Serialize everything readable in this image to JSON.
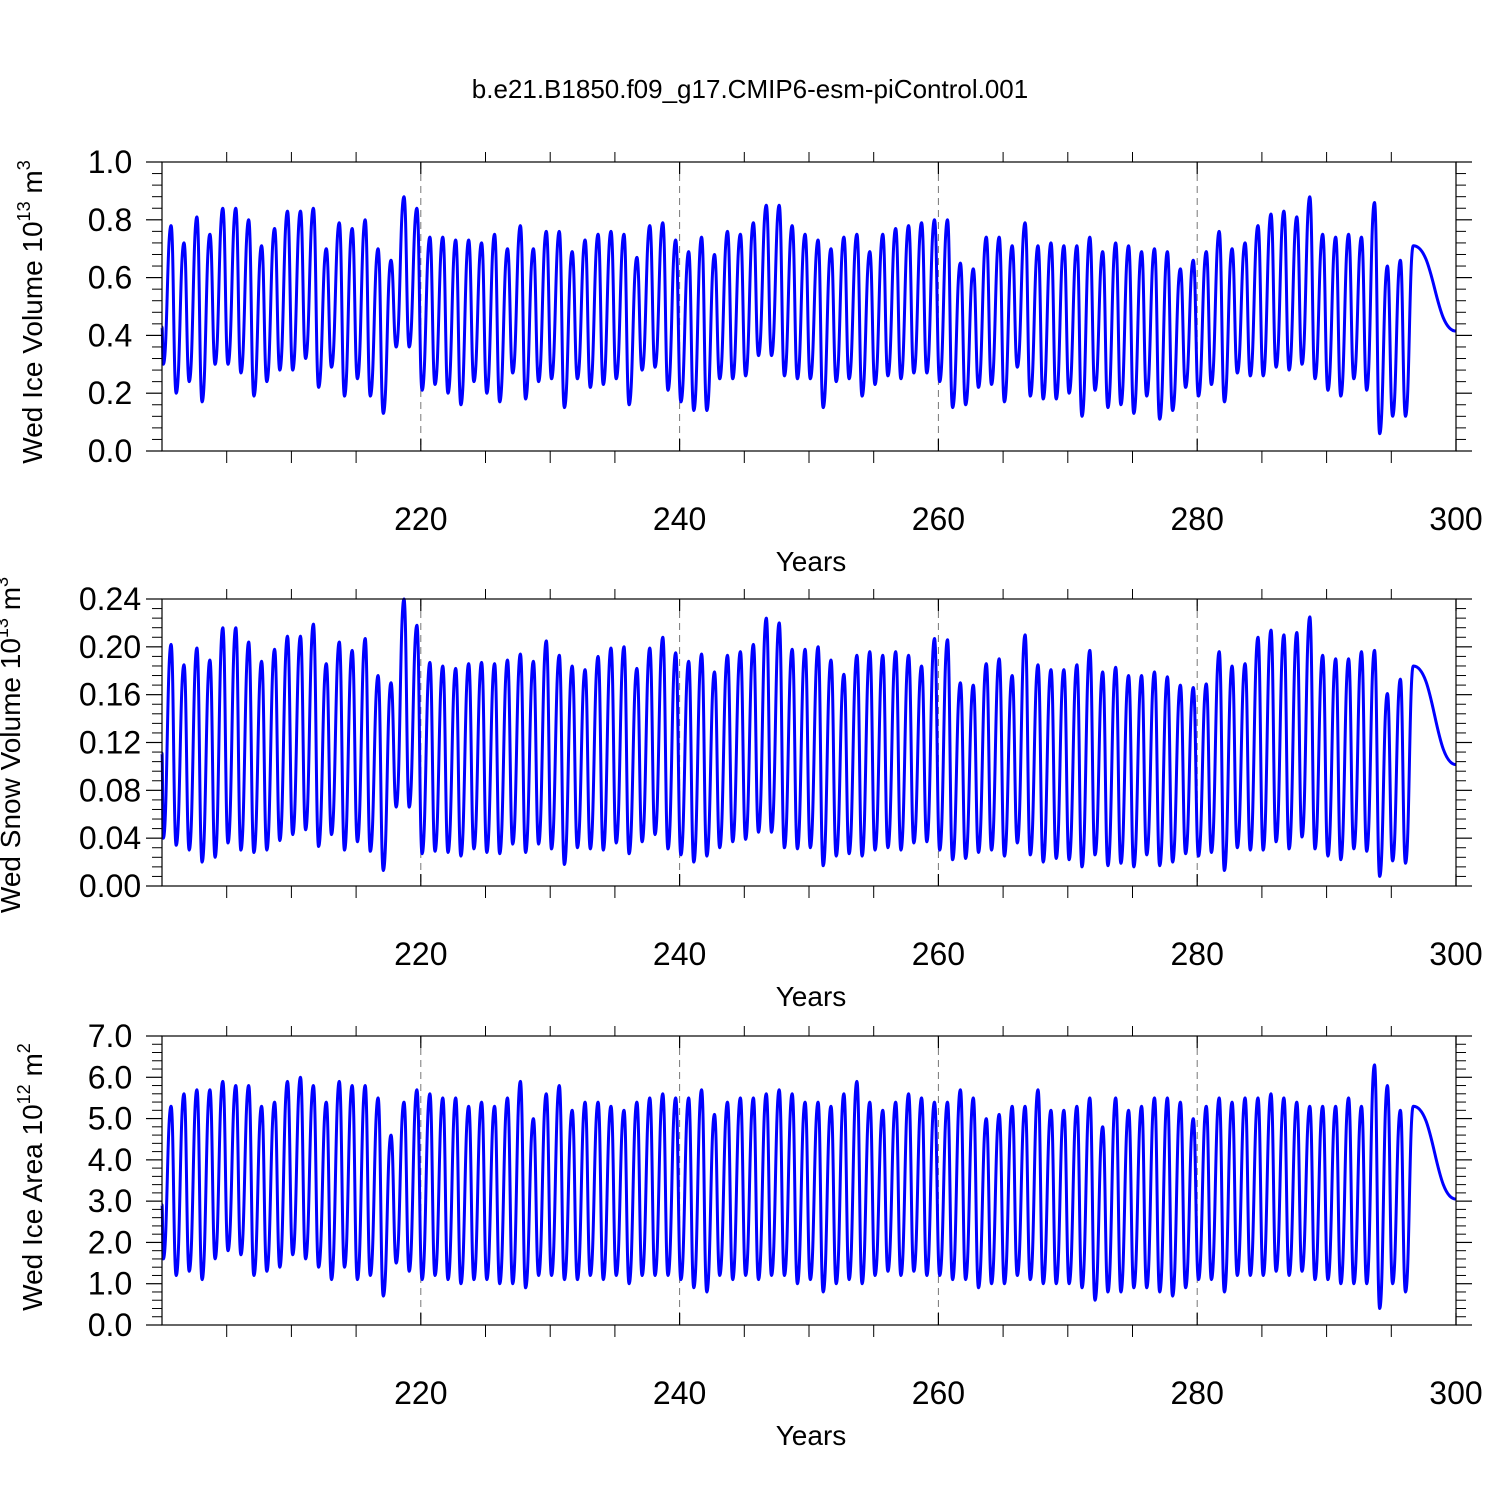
{
  "figure": {
    "title": "b.e21.B1850.f09_g17.CMIP6-esm-piControl.001"
  },
  "chart_data": [
    {
      "type": "line",
      "xlabel": "Years",
      "ylabel": {
        "pre": "Wed Ice Volume 10",
        "exp": "13",
        "mid": " m",
        "unit_exp": "3"
      },
      "xlim": [
        200,
        300
      ],
      "ylim": [
        0.0,
        1.0
      ],
      "xticks": [
        220,
        240,
        260,
        280,
        300
      ],
      "xtick_labels": [
        "220",
        "240",
        "260",
        "280",
        "300"
      ],
      "yticks": [
        0.0,
        0.2,
        0.4,
        0.6,
        0.8,
        1.0
      ],
      "ytick_labels": [
        "0.0",
        "0.2",
        "0.4",
        "0.6",
        "0.8",
        "1.0"
      ],
      "grid": "dashed vertical at major x ticks",
      "color": "#0000ff",
      "series": [
        {
          "x_start": 200.0,
          "x_step": 1,
          "maxima": [
            0.78,
            0.72,
            0.81,
            0.75,
            0.84,
            0.84,
            0.8,
            0.71,
            0.77,
            0.83,
            0.83,
            0.84,
            0.7,
            0.79,
            0.77,
            0.8,
            0.7,
            0.66,
            0.88,
            0.84,
            0.74,
            0.74,
            0.73,
            0.73,
            0.72,
            0.75,
            0.7,
            0.78,
            0.7,
            0.76,
            0.76,
            0.69,
            0.73,
            0.75,
            0.76,
            0.75,
            0.67,
            0.78,
            0.79,
            0.73,
            0.69,
            0.74,
            0.68,
            0.76,
            0.75,
            0.79,
            0.85,
            0.85,
            0.78,
            0.75,
            0.73,
            0.7,
            0.74,
            0.75,
            0.69,
            0.75,
            0.77,
            0.78,
            0.79,
            0.8,
            0.8,
            0.65,
            0.63,
            0.74,
            0.74,
            0.71,
            0.79,
            0.71,
            0.72,
            0.71,
            0.71,
            0.74,
            0.69,
            0.72,
            0.71,
            0.69,
            0.7,
            0.69,
            0.63,
            0.66,
            0.69,
            0.76,
            0.7,
            0.72,
            0.78,
            0.82,
            0.83,
            0.81,
            0.88,
            0.75,
            0.74,
            0.75,
            0.74,
            0.86,
            0.64,
            0.66,
            0.71
          ],
          "minima": [
            0.3,
            0.2,
            0.24,
            0.17,
            0.3,
            0.3,
            0.27,
            0.19,
            0.24,
            0.28,
            0.28,
            0.32,
            0.22,
            0.29,
            0.19,
            0.25,
            0.19,
            0.13,
            0.36,
            0.36,
            0.21,
            0.23,
            0.2,
            0.16,
            0.24,
            0.2,
            0.17,
            0.27,
            0.18,
            0.24,
            0.25,
            0.15,
            0.25,
            0.22,
            0.23,
            0.25,
            0.16,
            0.28,
            0.29,
            0.21,
            0.17,
            0.14,
            0.14,
            0.25,
            0.25,
            0.26,
            0.33,
            0.33,
            0.26,
            0.25,
            0.25,
            0.15,
            0.24,
            0.25,
            0.19,
            0.23,
            0.26,
            0.25,
            0.27,
            0.27,
            0.24,
            0.15,
            0.16,
            0.22,
            0.23,
            0.17,
            0.29,
            0.19,
            0.18,
            0.18,
            0.2,
            0.12,
            0.21,
            0.15,
            0.16,
            0.13,
            0.19,
            0.11,
            0.14,
            0.22,
            0.19,
            0.23,
            0.17,
            0.27,
            0.26,
            0.26,
            0.29,
            0.28,
            0.3,
            0.25,
            0.21,
            0.19,
            0.25,
            0.21,
            0.06,
            0.12,
            0.12
          ]
        }
      ]
    },
    {
      "type": "line",
      "xlabel": "Years",
      "ylabel": {
        "pre": "Wed Snow Volume 10",
        "exp": "13",
        "mid": " m",
        "unit_exp": "3"
      },
      "xlim": [
        200,
        300
      ],
      "ylim": [
        0.0,
        0.24
      ],
      "xticks": [
        220,
        240,
        260,
        280,
        300
      ],
      "xtick_labels": [
        "220",
        "240",
        "260",
        "280",
        "300"
      ],
      "yticks": [
        0.0,
        0.04,
        0.08,
        0.12,
        0.16,
        0.2,
        0.24
      ],
      "ytick_labels": [
        "0.00",
        "0.04",
        "0.08",
        "0.12",
        "0.16",
        "0.20",
        "0.24"
      ],
      "grid": "dashed vertical at major x ticks",
      "color": "#0000ff",
      "series": [
        {
          "x_start": 200.0,
          "x_step": 1,
          "maxima": [
            0.202,
            0.185,
            0.199,
            0.189,
            0.216,
            0.216,
            0.204,
            0.188,
            0.198,
            0.209,
            0.209,
            0.219,
            0.186,
            0.204,
            0.197,
            0.207,
            0.176,
            0.17,
            0.24,
            0.218,
            0.187,
            0.184,
            0.182,
            0.186,
            0.187,
            0.186,
            0.189,
            0.194,
            0.188,
            0.205,
            0.193,
            0.184,
            0.181,
            0.192,
            0.199,
            0.2,
            0.182,
            0.199,
            0.208,
            0.195,
            0.188,
            0.194,
            0.179,
            0.193,
            0.196,
            0.202,
            0.224,
            0.22,
            0.198,
            0.198,
            0.2,
            0.189,
            0.177,
            0.193,
            0.196,
            0.193,
            0.196,
            0.193,
            0.184,
            0.207,
            0.206,
            0.17,
            0.168,
            0.186,
            0.19,
            0.176,
            0.21,
            0.185,
            0.181,
            0.181,
            0.185,
            0.197,
            0.179,
            0.183,
            0.176,
            0.176,
            0.179,
            0.175,
            0.168,
            0.166,
            0.169,
            0.196,
            0.184,
            0.186,
            0.208,
            0.214,
            0.21,
            0.212,
            0.225,
            0.193,
            0.19,
            0.19,
            0.196,
            0.197,
            0.161,
            0.173,
            0.184
          ],
          "minima": [
            0.04,
            0.034,
            0.03,
            0.02,
            0.024,
            0.036,
            0.03,
            0.028,
            0.03,
            0.038,
            0.043,
            0.047,
            0.033,
            0.043,
            0.03,
            0.037,
            0.029,
            0.013,
            0.066,
            0.066,
            0.027,
            0.029,
            0.028,
            0.025,
            0.031,
            0.028,
            0.027,
            0.035,
            0.028,
            0.035,
            0.031,
            0.018,
            0.032,
            0.031,
            0.03,
            0.036,
            0.027,
            0.037,
            0.043,
            0.031,
            0.026,
            0.02,
            0.025,
            0.032,
            0.037,
            0.039,
            0.045,
            0.045,
            0.032,
            0.031,
            0.032,
            0.017,
            0.025,
            0.027,
            0.025,
            0.03,
            0.032,
            0.03,
            0.036,
            0.037,
            0.03,
            0.022,
            0.023,
            0.028,
            0.03,
            0.025,
            0.036,
            0.026,
            0.02,
            0.023,
            0.022,
            0.016,
            0.026,
            0.017,
            0.019,
            0.016,
            0.026,
            0.017,
            0.02,
            0.027,
            0.025,
            0.028,
            0.013,
            0.032,
            0.03,
            0.03,
            0.037,
            0.031,
            0.041,
            0.031,
            0.025,
            0.022,
            0.031,
            0.029,
            0.008,
            0.021,
            0.019
          ]
        }
      ]
    },
    {
      "type": "line",
      "xlabel": "Years",
      "ylabel": {
        "pre": "Wed Ice Area 10",
        "exp": "12",
        "mid": " m",
        "unit_exp": "2"
      },
      "xlim": [
        200,
        300
      ],
      "ylim": [
        0.0,
        7.0
      ],
      "xticks": [
        220,
        240,
        260,
        280,
        300
      ],
      "xtick_labels": [
        "220",
        "240",
        "260",
        "280",
        "300"
      ],
      "yticks": [
        0.0,
        1.0,
        2.0,
        3.0,
        4.0,
        5.0,
        6.0,
        7.0
      ],
      "ytick_labels": [
        "0.0",
        "1.0",
        "2.0",
        "3.0",
        "4.0",
        "5.0",
        "6.0",
        "7.0"
      ],
      "grid": "dashed vertical at major x ticks",
      "color": "#0000ff",
      "series": [
        {
          "x_start": 200.0,
          "x_step": 1,
          "maxima": [
            5.3,
            5.6,
            5.7,
            5.7,
            5.9,
            5.8,
            5.8,
            5.3,
            5.4,
            5.9,
            6.0,
            5.8,
            5.4,
            5.9,
            5.8,
            5.8,
            5.5,
            4.6,
            5.4,
            5.7,
            5.6,
            5.5,
            5.5,
            5.3,
            5.4,
            5.3,
            5.5,
            5.9,
            5.0,
            5.6,
            5.8,
            5.2,
            5.4,
            5.4,
            5.3,
            5.2,
            5.4,
            5.5,
            5.6,
            5.5,
            5.5,
            5.7,
            5.1,
            5.4,
            5.5,
            5.5,
            5.6,
            5.7,
            5.6,
            5.4,
            5.4,
            5.3,
            5.6,
            5.9,
            5.4,
            5.2,
            5.4,
            5.6,
            5.5,
            5.4,
            5.4,
            5.7,
            5.5,
            5.0,
            5.1,
            5.3,
            5.3,
            5.7,
            5.2,
            5.2,
            5.3,
            5.5,
            4.8,
            5.5,
            5.2,
            5.3,
            5.5,
            5.5,
            5.4,
            5.0,
            5.3,
            5.5,
            5.4,
            5.5,
            5.5,
            5.6,
            5.5,
            5.4,
            5.3,
            5.3,
            5.3,
            5.5,
            5.3,
            6.3,
            5.8,
            5.2,
            5.3
          ],
          "minima": [
            1.6,
            1.2,
            1.3,
            1.1,
            1.6,
            1.8,
            1.7,
            1.2,
            1.3,
            1.4,
            1.7,
            1.6,
            1.4,
            1.1,
            1.4,
            1.1,
            1.2,
            0.7,
            1.5,
            1.3,
            1.1,
            1.2,
            1.1,
            1.0,
            1.1,
            1.1,
            1.0,
            1.0,
            0.9,
            1.2,
            1.2,
            1.1,
            1.1,
            1.2,
            1.1,
            1.2,
            1.0,
            1.2,
            1.2,
            1.2,
            1.1,
            0.9,
            0.8,
            1.2,
            1.1,
            1.2,
            1.1,
            1.2,
            1.2,
            1.0,
            1.1,
            0.8,
            1.0,
            1.1,
            1.0,
            1.2,
            1.3,
            1.2,
            1.3,
            1.2,
            1.2,
            1.1,
            1.1,
            0.9,
            1.0,
            1.0,
            1.2,
            1.1,
            1.0,
            1.0,
            1.0,
            0.9,
            0.6,
            0.8,
            0.8,
            0.9,
            0.9,
            0.8,
            0.7,
            0.9,
            1.1,
            1.1,
            0.8,
            1.2,
            1.2,
            1.2,
            1.3,
            1.2,
            1.3,
            1.1,
            1.1,
            1.0,
            1.0,
            1.0,
            0.4,
            1.0,
            0.8
          ]
        }
      ]
    }
  ]
}
